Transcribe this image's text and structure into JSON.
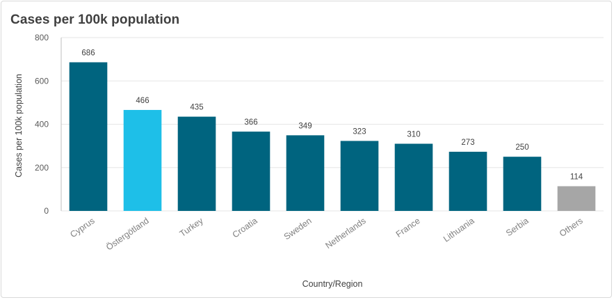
{
  "card": {
    "title": "Cases per 100k population"
  },
  "chart_data": {
    "type": "bar",
    "title": "Cases per 100k population",
    "xlabel": "Country/Region",
    "ylabel": "Cases per 100k population",
    "ylim": [
      0,
      800
    ],
    "yticks": [
      0,
      200,
      400,
      600,
      800
    ],
    "grid": true,
    "categories": [
      "Cyprus",
      "Östergötland",
      "Turkey",
      "Croatia",
      "Sweden",
      "Netherlands",
      "France",
      "Lithuania",
      "Serbia",
      "Others"
    ],
    "values": [
      686,
      466,
      435,
      366,
      349,
      323,
      310,
      273,
      250,
      114
    ],
    "colors": [
      "#00647f",
      "#1ebfe8",
      "#00647f",
      "#00647f",
      "#00647f",
      "#00647f",
      "#00647f",
      "#00647f",
      "#00647f",
      "#a6a6a6"
    ]
  }
}
